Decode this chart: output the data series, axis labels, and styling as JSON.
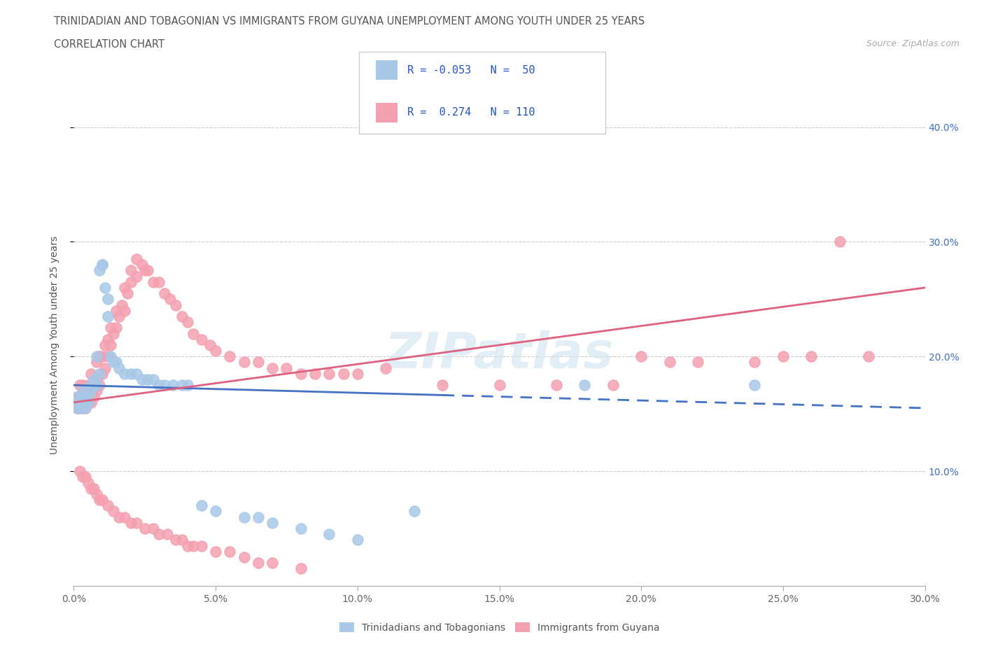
{
  "title_line1": "TRINIDADIAN AND TOBAGONIAN VS IMMIGRANTS FROM GUYANA UNEMPLOYMENT AMONG YOUTH UNDER 25 YEARS",
  "title_line2": "CORRELATION CHART",
  "source": "Source: ZipAtlas.com",
  "ylabel": "Unemployment Among Youth under 25 years",
  "xmin": 0.0,
  "xmax": 0.3,
  "ymin": 0.0,
  "ymax": 0.42,
  "color_blue": "#a8c8e8",
  "color_blue_line": "#4472c4",
  "color_pink": "#f4a0b0",
  "color_pink_line": "#e06080",
  "watermark": "ZIPatlas",
  "blue_scatter_x": [
    0.001,
    0.001,
    0.002,
    0.002,
    0.003,
    0.003,
    0.003,
    0.004,
    0.004,
    0.005,
    0.005,
    0.006,
    0.006,
    0.007,
    0.007,
    0.008,
    0.008,
    0.009,
    0.009,
    0.01,
    0.01,
    0.011,
    0.012,
    0.012,
    0.013,
    0.014,
    0.015,
    0.016,
    0.018,
    0.02,
    0.022,
    0.024,
    0.026,
    0.028,
    0.03,
    0.032,
    0.035,
    0.038,
    0.04,
    0.045,
    0.05,
    0.06,
    0.065,
    0.07,
    0.08,
    0.09,
    0.1,
    0.12,
    0.18,
    0.24
  ],
  "blue_scatter_y": [
    0.155,
    0.165,
    0.155,
    0.16,
    0.16,
    0.165,
    0.17,
    0.155,
    0.165,
    0.16,
    0.165,
    0.17,
    0.175,
    0.175,
    0.18,
    0.175,
    0.2,
    0.185,
    0.275,
    0.28,
    0.28,
    0.26,
    0.25,
    0.235,
    0.2,
    0.195,
    0.195,
    0.19,
    0.185,
    0.185,
    0.185,
    0.18,
    0.18,
    0.18,
    0.175,
    0.175,
    0.175,
    0.175,
    0.175,
    0.07,
    0.065,
    0.06,
    0.06,
    0.055,
    0.05,
    0.045,
    0.04,
    0.065,
    0.175,
    0.175
  ],
  "pink_scatter_x": [
    0.001,
    0.001,
    0.002,
    0.002,
    0.002,
    0.003,
    0.003,
    0.003,
    0.004,
    0.004,
    0.004,
    0.005,
    0.005,
    0.006,
    0.006,
    0.006,
    0.007,
    0.007,
    0.008,
    0.008,
    0.008,
    0.009,
    0.009,
    0.01,
    0.01,
    0.011,
    0.011,
    0.012,
    0.012,
    0.013,
    0.013,
    0.014,
    0.015,
    0.015,
    0.016,
    0.017,
    0.018,
    0.018,
    0.019,
    0.02,
    0.02,
    0.022,
    0.022,
    0.024,
    0.025,
    0.026,
    0.028,
    0.03,
    0.032,
    0.034,
    0.036,
    0.038,
    0.04,
    0.042,
    0.045,
    0.048,
    0.05,
    0.055,
    0.06,
    0.065,
    0.07,
    0.075,
    0.08,
    0.085,
    0.09,
    0.095,
    0.1,
    0.11,
    0.13,
    0.15,
    0.17,
    0.19,
    0.2,
    0.21,
    0.22,
    0.24,
    0.25,
    0.26,
    0.27,
    0.28,
    0.002,
    0.003,
    0.004,
    0.005,
    0.006,
    0.007,
    0.008,
    0.009,
    0.01,
    0.012,
    0.014,
    0.016,
    0.018,
    0.02,
    0.022,
    0.025,
    0.028,
    0.03,
    0.033,
    0.036,
    0.038,
    0.04,
    0.042,
    0.045,
    0.05,
    0.055,
    0.06,
    0.065,
    0.07,
    0.08
  ],
  "pink_scatter_y": [
    0.155,
    0.165,
    0.155,
    0.165,
    0.175,
    0.155,
    0.165,
    0.175,
    0.155,
    0.16,
    0.17,
    0.16,
    0.175,
    0.16,
    0.17,
    0.185,
    0.165,
    0.175,
    0.17,
    0.18,
    0.195,
    0.175,
    0.2,
    0.185,
    0.2,
    0.19,
    0.21,
    0.2,
    0.215,
    0.21,
    0.225,
    0.22,
    0.225,
    0.24,
    0.235,
    0.245,
    0.24,
    0.26,
    0.255,
    0.265,
    0.275,
    0.27,
    0.285,
    0.28,
    0.275,
    0.275,
    0.265,
    0.265,
    0.255,
    0.25,
    0.245,
    0.235,
    0.23,
    0.22,
    0.215,
    0.21,
    0.205,
    0.2,
    0.195,
    0.195,
    0.19,
    0.19,
    0.185,
    0.185,
    0.185,
    0.185,
    0.185,
    0.19,
    0.175,
    0.175,
    0.175,
    0.175,
    0.2,
    0.195,
    0.195,
    0.195,
    0.2,
    0.2,
    0.3,
    0.2,
    0.1,
    0.095,
    0.095,
    0.09,
    0.085,
    0.085,
    0.08,
    0.075,
    0.075,
    0.07,
    0.065,
    0.06,
    0.06,
    0.055,
    0.055,
    0.05,
    0.05,
    0.045,
    0.045,
    0.04,
    0.04,
    0.035,
    0.035,
    0.035,
    0.03,
    0.03,
    0.025,
    0.02,
    0.02,
    0.015
  ]
}
